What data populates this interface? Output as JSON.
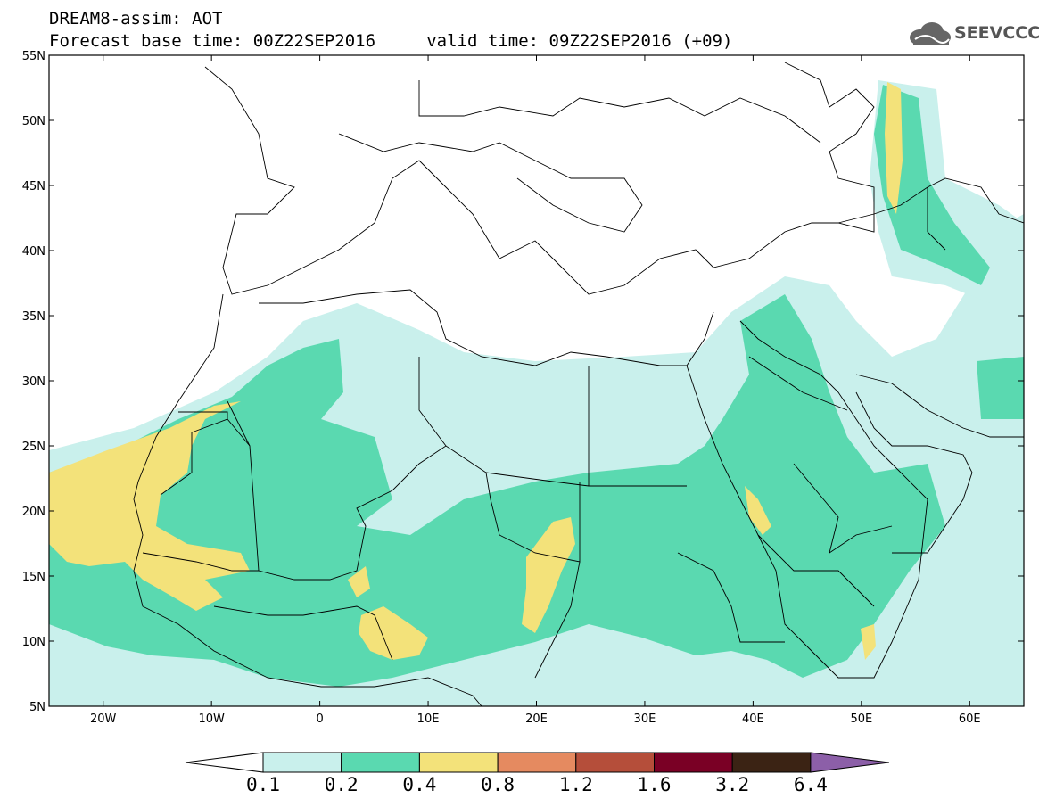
{
  "header": {
    "title_line1": "DREAM8-assim: AOT",
    "title_line2": "Forecast base time: 00Z22SEP2016     valid time: 09Z22SEP2016 (+09)",
    "logo_text": "SEEVCCC",
    "logo_icon": "cloud-icon"
  },
  "map": {
    "lon_range": [
      -25,
      65
    ],
    "lat_range": [
      5,
      55
    ],
    "lat_ticks": [
      "55N",
      "50N",
      "45N",
      "40N",
      "35N",
      "30N",
      "25N",
      "20N",
      "15N",
      "10N",
      "5N"
    ],
    "lon_ticks": [
      "20W",
      "10W",
      "0",
      "10E",
      "20E",
      "30E",
      "40E",
      "50E",
      "60E"
    ],
    "colors": {
      "land_border": "#000000",
      "frame": "#000000"
    }
  },
  "colorbar": {
    "levels": [
      "0.1",
      "0.2",
      "0.4",
      "0.8",
      "1.2",
      "1.6",
      "3.2",
      "6.4"
    ],
    "colors": [
      "#c9f0ec",
      "#5ad9b0",
      "#f3e27a",
      "#e58a60",
      "#b54e3a",
      "#7a0025",
      "#3b2314",
      "#8c5fa8"
    ],
    "under_color": "#ffffff"
  }
}
